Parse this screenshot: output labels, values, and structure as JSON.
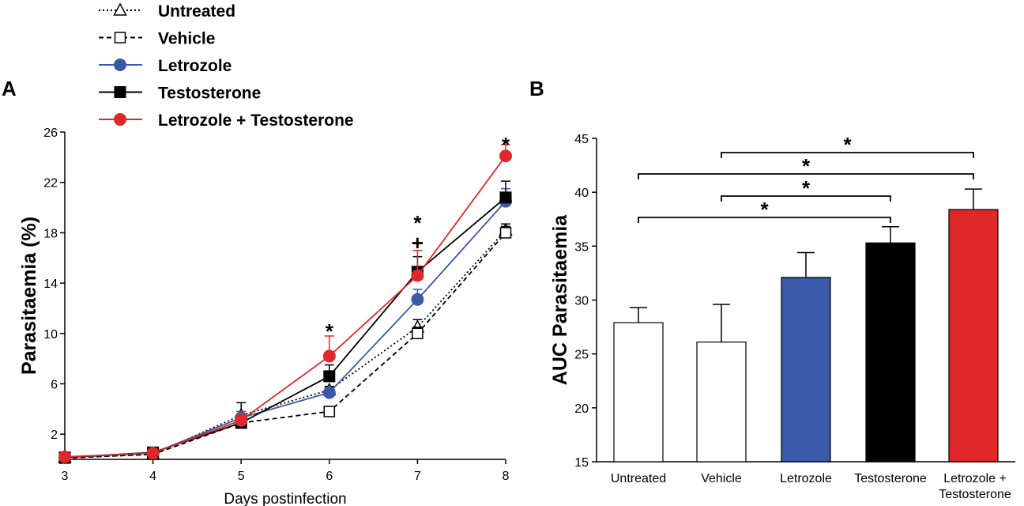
{
  "chart_data": [
    {
      "panel": "A",
      "type": "line",
      "title": "",
      "xlabel": "Days postinfection",
      "ylabel": "Parasitaemia (%)",
      "x": [
        3,
        4,
        5,
        6,
        7,
        8
      ],
      "xticks": [
        "3",
        "4",
        "5",
        "6",
        "7",
        "8"
      ],
      "yticks": [
        "2",
        "6",
        "10",
        "14",
        "18",
        "22",
        "26"
      ],
      "xlim": [
        3,
        8
      ],
      "ylim": [
        0,
        26
      ],
      "legend_position": "top",
      "series": [
        {
          "name": "Untreated",
          "color": "#000000",
          "style": "dotted",
          "marker": "triangle-open",
          "values": [
            0.15,
            0.4,
            3.5,
            5.5,
            10.5,
            18.2
          ],
          "errors": [
            0.1,
            0.15,
            1.0,
            0.3,
            0.6,
            0.5
          ]
        },
        {
          "name": "Vehicle",
          "color": "#000000",
          "style": "dashed",
          "marker": "square-open",
          "values": [
            0.1,
            0.4,
            2.9,
            3.8,
            10.0,
            18.0
          ],
          "errors": [
            0.1,
            0.15,
            0.3,
            0.2,
            0.5,
            0.5
          ]
        },
        {
          "name": "Letrozole",
          "color": "#3a59a8",
          "style": "solid",
          "marker": "circle",
          "values": [
            0.15,
            0.5,
            3.3,
            5.3,
            12.7,
            20.5
          ],
          "errors": [
            0.1,
            0.1,
            0.5,
            0.4,
            0.8,
            1.0
          ]
        },
        {
          "name": "Testosterone",
          "color": "#000000",
          "style": "solid",
          "marker": "square",
          "values": [
            0.15,
            0.55,
            2.9,
            6.6,
            14.9,
            20.8
          ],
          "errors": [
            0.1,
            0.15,
            0.3,
            0.9,
            1.2,
            1.3
          ]
        },
        {
          "name": "Letrozole + Testosterone",
          "color": "#e0282b",
          "style": "solid",
          "marker": "circle",
          "values": [
            0.2,
            0.5,
            3.1,
            8.2,
            14.6,
            24.1
          ],
          "errors": [
            0.1,
            0.1,
            0.5,
            1.6,
            2.0,
            0.9
          ]
        }
      ],
      "annotations": [
        {
          "x": 6,
          "text": "*"
        },
        {
          "x": 7,
          "text": "*"
        },
        {
          "x": 7,
          "text": "+"
        },
        {
          "x": 8,
          "text": "*"
        }
      ]
    },
    {
      "panel": "B",
      "type": "bar",
      "title": "",
      "xlabel": "",
      "ylabel": "AUC Parasitaemia",
      "categories": [
        "Untreated",
        "Vehicle",
        "Letrozole",
        "Testosterone",
        "Letrozole + Testosterone"
      ],
      "category_lines": [
        [
          "Untreated"
        ],
        [
          "Vehicle"
        ],
        [
          "Letrozole"
        ],
        [
          "Testosterone"
        ],
        [
          "Letrozole +",
          "Testosterone"
        ]
      ],
      "values": [
        27.9,
        26.1,
        32.1,
        35.3,
        38.4
      ],
      "errors": [
        1.4,
        3.5,
        2.3,
        1.5,
        1.9
      ],
      "colors": [
        "#ffffff",
        "#ffffff",
        "#3a59a8",
        "#000000",
        "#e0282b"
      ],
      "yticks": [
        "15",
        "20",
        "25",
        "30",
        "35",
        "40",
        "45"
      ],
      "ylim": [
        15,
        45
      ],
      "significance": [
        {
          "from": 1,
          "to": 4,
          "text": "*"
        },
        {
          "from": 0,
          "to": 4,
          "text": "*"
        },
        {
          "from": 1,
          "to": 3,
          "text": "*"
        },
        {
          "from": 0,
          "to": 3,
          "text": "*"
        }
      ]
    }
  ]
}
